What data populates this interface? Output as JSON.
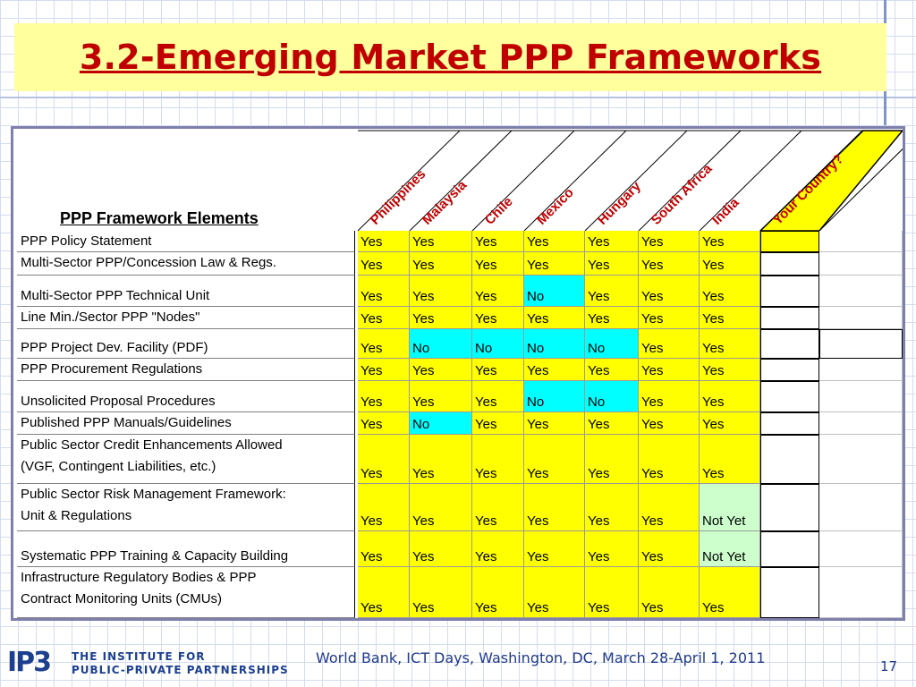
{
  "slide": {
    "title": "3.2-Emerging Market PPP Frameworks",
    "footer_text": "World Bank, ICT Days, Washington, DC, March 28-April 1, 2011",
    "page_number": "17",
    "logo_mark": "IP3",
    "logo_line1": "THE INSTITUTE FOR",
    "logo_line2": "PUBLIC-PRIVATE PARTNERSHIPS"
  },
  "table": {
    "header_label": "PPP Framework Elements",
    "countries": [
      "Philippines",
      "Malaysia",
      "Chile",
      "Mexico",
      "Hungary",
      "South Africa",
      "India",
      "Your Country?"
    ],
    "rows": [
      {
        "element": [
          "PPP Policy Statement"
        ],
        "values": [
          "Yes",
          "Yes",
          "Yes",
          "Yes",
          "Yes",
          "Yes",
          "Yes"
        ]
      },
      {
        "element": [
          "Multi-Sector PPP/Concession Law & Regs."
        ],
        "values": [
          "Yes",
          "Yes",
          "Yes",
          "Yes",
          "Yes",
          "Yes",
          "Yes"
        ]
      },
      {
        "element": [
          "Multi-Sector PPP Technical Unit"
        ],
        "values": [
          "Yes",
          "Yes",
          "Yes",
          "No",
          "Yes",
          "Yes",
          "Yes"
        ]
      },
      {
        "element": [
          "Line Min./Sector PPP \"Nodes\""
        ],
        "values": [
          "Yes",
          "Yes",
          "Yes",
          "Yes",
          "Yes",
          "Yes",
          "Yes"
        ]
      },
      {
        "element": [
          "PPP Project Dev. Facility (PDF)"
        ],
        "values": [
          "Yes",
          "No",
          "No",
          "No",
          "No",
          "Yes",
          "Yes"
        ]
      },
      {
        "element": [
          "PPP Procurement Regulations"
        ],
        "values": [
          "Yes",
          "Yes",
          "Yes",
          "Yes",
          "Yes",
          "Yes",
          "Yes"
        ]
      },
      {
        "element": [
          "Unsolicited Proposal Procedures"
        ],
        "values": [
          "Yes",
          "Yes",
          "Yes",
          "No",
          "No",
          "Yes",
          "Yes"
        ]
      },
      {
        "element": [
          "Published PPP Manuals/Guidelines"
        ],
        "values": [
          "Yes",
          "No",
          "Yes",
          "Yes",
          "Yes",
          "Yes",
          "Yes"
        ]
      },
      {
        "element": [
          "Public Sector Credit Enhancements Allowed",
          "(VGF, Contingent Liabilities, etc.)"
        ],
        "values": [
          "Yes",
          "Yes",
          "Yes",
          "Yes",
          "Yes",
          "Yes",
          "Yes"
        ]
      },
      {
        "element": [
          "Public Sector Risk Management Framework:",
          "Unit & Regulations"
        ],
        "values": [
          "Yes",
          "Yes",
          "Yes",
          "Yes",
          "Yes",
          "Yes",
          "Not Yet"
        ]
      },
      {
        "element": [
          "Systematic PPP Training & Capacity Building"
        ],
        "values": [
          "Yes",
          "Yes",
          "Yes",
          "Yes",
          "Yes",
          "Yes",
          "Not Yet"
        ]
      },
      {
        "element": [
          "Infrastructure Regulatory Bodies & PPP",
          "Contract Monitoring Units (CMUs)"
        ],
        "values": [
          "Yes",
          "Yes",
          "Yes",
          "Yes",
          "Yes",
          "Yes",
          "Yes"
        ]
      }
    ]
  },
  "colors": {
    "title": "#c00000",
    "yes_fill": "#ffff00",
    "no_fill": "#00ffff",
    "not_yet_fill": "#ccffcc",
    "title_band": "#ffff9d"
  }
}
